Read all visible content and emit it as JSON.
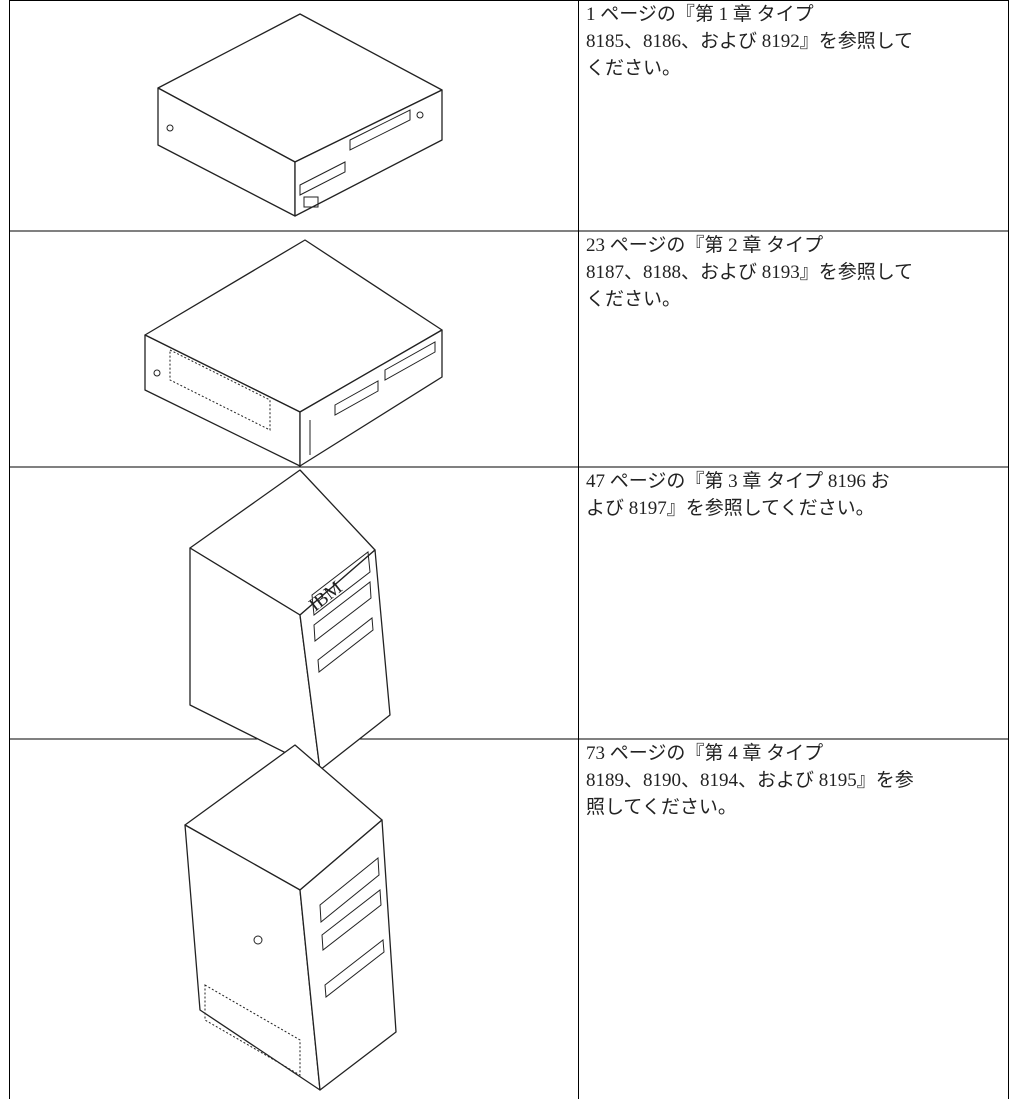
{
  "table": {
    "rows": [
      {
        "lines": [
          "1 ページの『第 1 章 タイプ",
          "8185、8186、および 8192』を参照して",
          "ください。"
        ]
      },
      {
        "lines": [
          "23 ページの『第 2 章 タイプ",
          "8187、8188、および 8193』を参照して",
          "ください。"
        ]
      },
      {
        "lines": [
          "47 ページの『第 3 章 タイプ 8196 お",
          "よび 8197』を参照してください。"
        ]
      },
      {
        "lines": [
          "73 ページの『第 4 章 タイプ",
          "8189、8190、8194、および 8195』を参",
          "照してください。"
        ]
      }
    ]
  }
}
